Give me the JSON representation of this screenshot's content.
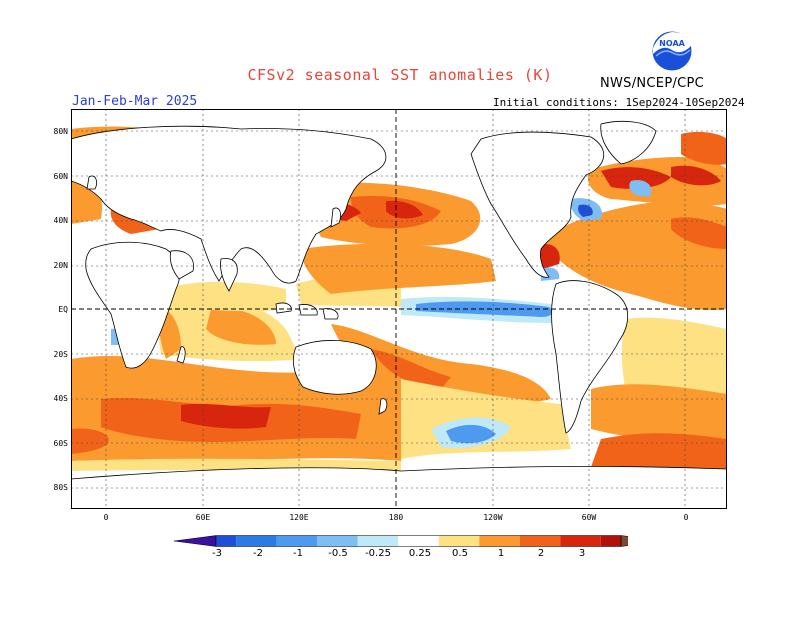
{
  "header": {
    "title": "CFSv2 seasonal SST anomalies (K)",
    "agency": "NWS/NCEP/CPC",
    "season": "Jan-Feb-Mar 2025",
    "initial_conditions": "Initial conditions: 1Sep2024-10Sep2024",
    "logo_text": "NOAA"
  },
  "map": {
    "lat_labels": [
      "80N",
      "60N",
      "40N",
      "20N",
      "EQ",
      "20S",
      "40S",
      "60S",
      "80S"
    ],
    "lon_labels": [
      "0",
      "60E",
      "120E",
      "180",
      "120W",
      "60W",
      "0"
    ]
  },
  "colorbar": {
    "labels": [
      "-3",
      "-2",
      "-1",
      "-0.5",
      "-0.25",
      "0.25",
      "0.5",
      "1",
      "2",
      "3"
    ],
    "colors": {
      "below": "#3a10a0",
      "bins": [
        "#1f4fd6",
        "#2b7be6",
        "#4e9af0",
        "#7fbdf5",
        "#bfe9f6",
        "#ffffff",
        "#fde183",
        "#fb9a2e",
        "#f2631a",
        "#d8250d",
        "#b0120a"
      ],
      "above": "#7a4a32"
    }
  }
}
